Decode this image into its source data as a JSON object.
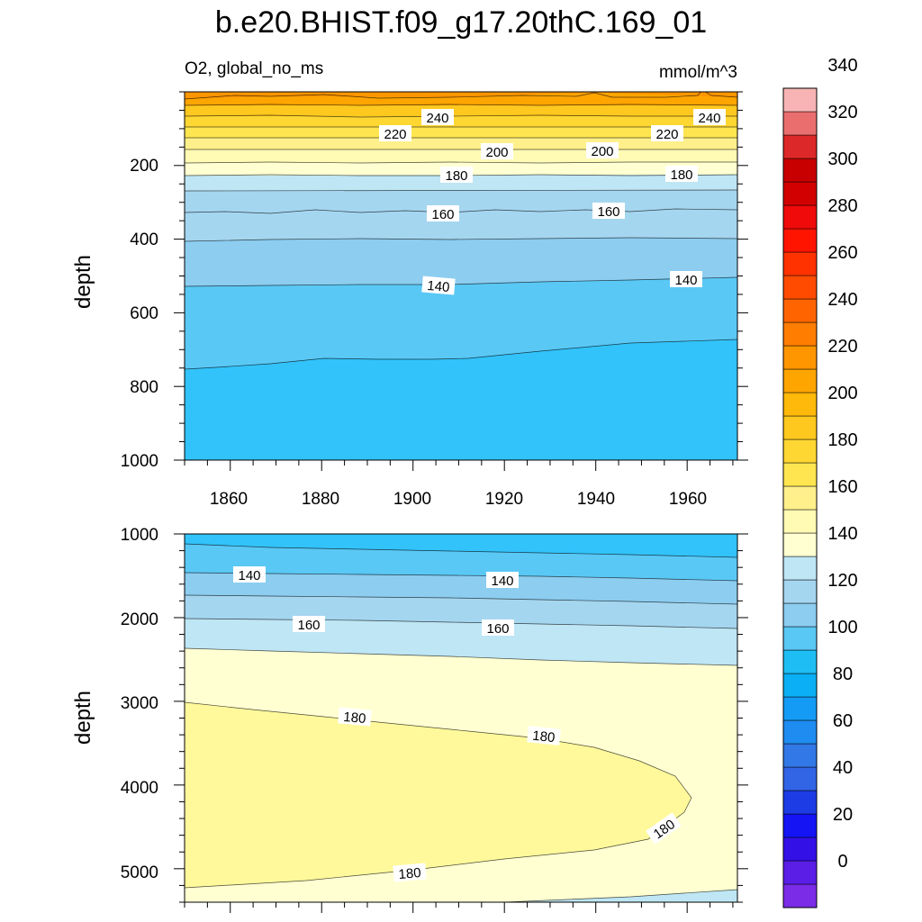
{
  "title": "b.e20.BHIST.f09_g17.20thC.169_01",
  "subtitle_left": "O2, global_no_ms",
  "units": "mmol/m^3",
  "colorbar": {
    "labels": [
      "0",
      "20",
      "40",
      "60",
      "80",
      "100",
      "120",
      "140",
      "160",
      "180",
      "200",
      "220",
      "240",
      "260",
      "280",
      "300",
      "320",
      "340"
    ],
    "colors": [
      "#7a2ce6",
      "#5a1ee6",
      "#3210e6",
      "#1414f5",
      "#1e3ce6",
      "#3264e6",
      "#3278e6",
      "#1e8cf0",
      "#149bf5",
      "#0aaff5",
      "#1ebef5",
      "#5ac8f5",
      "#8ccdf0",
      "#a5d6f0",
      "#bee6f5",
      "#ffffd2",
      "#fffab4",
      "#fff08c",
      "#ffe650",
      "#ffd732",
      "#ffc81e",
      "#ffb90a",
      "#ffa500",
      "#ff9600",
      "#ff7d00",
      "#ff6400",
      "#ff4b00",
      "#ff3200",
      "#ff1400",
      "#f00a0a",
      "#d20000",
      "#c80000",
      "#dc2828",
      "#eb6e6e",
      "#f8b4b4"
    ]
  },
  "chart_data": [
    {
      "type": "heatmap",
      "panel": "upper",
      "xlabel": "",
      "ylabel": "depth",
      "xlim": [
        1850,
        1971
      ],
      "ylim": [
        0,
        1000
      ],
      "y_inverted": true,
      "xticks": [
        1860,
        1880,
        1900,
        1920,
        1940,
        1960
      ],
      "yticks": [
        200,
        400,
        600,
        800,
        1000
      ],
      "contour_levels": [
        {
          "level": 250,
          "depth": [
            30,
            30
          ]
        },
        {
          "level": 240,
          "depth": [
            65,
            65
          ]
        },
        {
          "level": 230,
          "depth": [
            95,
            95
          ]
        },
        {
          "level": 220,
          "depth": [
            125,
            125
          ]
        },
        {
          "level": 210,
          "depth": [
            150,
            150
          ]
        },
        {
          "level": 200,
          "depth": [
            185,
            185
          ]
        },
        {
          "level": 190,
          "depth": [
            215,
            215
          ]
        },
        {
          "level": 180,
          "depth": [
            270,
            268
          ]
        },
        {
          "level": 170,
          "depth": [
            330,
            325
          ]
        },
        {
          "level": 160,
          "depth": [
            410,
            400
          ]
        },
        {
          "level": 150,
          "depth": [
            525,
            505
          ]
        },
        {
          "level": 140,
          "depth": [
            750,
            670
          ]
        }
      ],
      "contour_labels": [
        {
          "text": "240",
          "x": 1906,
          "y": 70
        },
        {
          "text": "240",
          "x": 1962,
          "y": 70
        },
        {
          "text": "220",
          "x": 1894,
          "y": 115
        },
        {
          "text": "220",
          "x": 1953,
          "y": 115
        },
        {
          "text": "200",
          "x": 1919,
          "y": 165
        },
        {
          "text": "200",
          "x": 1942,
          "y": 160
        },
        {
          "text": "180",
          "x": 1900,
          "y": 230
        },
        {
          "text": "180",
          "x": 1961,
          "y": 225
        },
        {
          "text": "160",
          "x": 1906,
          "y": 345
        },
        {
          "text": "160",
          "x": 1944,
          "y": 335
        },
        {
          "text": "140",
          "x": 1906,
          "y": 545
        },
        {
          "text": "140",
          "x": 1961,
          "y": 525
        }
      ]
    },
    {
      "type": "heatmap",
      "panel": "lower",
      "xlabel": "",
      "ylabel": "depth",
      "xlim": [
        1850,
        1971
      ],
      "ylim": [
        1000,
        5400
      ],
      "y_inverted": true,
      "xticks": [
        1860,
        1880,
        1900,
        1920,
        1940,
        1960
      ],
      "yticks": [
        1000,
        2000,
        3000,
        4000,
        5000
      ],
      "contour_labels": [
        {
          "text": "140",
          "x": 1864,
          "y": 1470
        },
        {
          "text": "140",
          "x": 1920,
          "y": 1530
        },
        {
          "text": "160",
          "x": 1877,
          "y": 2060
        },
        {
          "text": "160",
          "x": 1919,
          "y": 2100
        },
        {
          "text": "180",
          "x": 1887,
          "y": 3170
        },
        {
          "text": "180",
          "x": 1929,
          "y": 3400
        },
        {
          "text": "180",
          "x": 1957,
          "y": 4500
        },
        {
          "text": "180",
          "x": 1899,
          "y": 5000
        }
      ]
    }
  ]
}
